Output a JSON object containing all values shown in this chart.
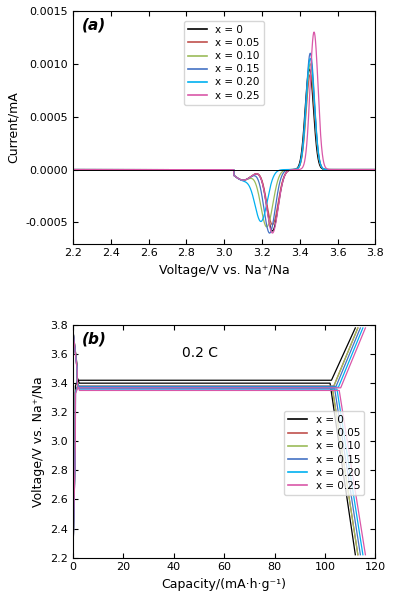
{
  "fig_width": 3.93,
  "fig_height": 5.98,
  "dpi": 100,
  "colors": {
    "x0": "#000000",
    "x005": "#c0504d",
    "x010": "#9bbb59",
    "x015": "#4472c4",
    "x020": "#00b0f0",
    "x025": "#d957a8"
  },
  "legend_labels": [
    "x = 0",
    "x = 0.05",
    "x = 0.10",
    "x = 0.15",
    "x = 0.20",
    "x = 0.25"
  ],
  "panel_a": {
    "xlabel": "Voltage/V vs. Na⁺/Na",
    "ylabel": "Current/mA",
    "xlim": [
      2.2,
      3.8
    ],
    "ylim": [
      -0.0007,
      0.0015
    ],
    "xticks": [
      2.2,
      2.4,
      2.6,
      2.8,
      3.0,
      3.2,
      3.4,
      3.6,
      3.8
    ],
    "yticks": [
      -0.0005,
      0.0,
      0.0005,
      0.001,
      0.0015
    ],
    "label": "(a)"
  },
  "panel_b": {
    "xlabel": "Capacity/(mA·h·g⁻¹)",
    "ylabel": "Voltage/V vs. Na⁺/Na",
    "xlim": [
      0,
      120
    ],
    "ylim": [
      2.2,
      3.8
    ],
    "xticks": [
      0,
      20,
      40,
      60,
      80,
      100,
      120
    ],
    "yticks": [
      2.2,
      2.4,
      2.6,
      2.8,
      3.0,
      3.2,
      3.4,
      3.6,
      3.8
    ],
    "label": "(b)",
    "annotation": "0.2 C"
  }
}
